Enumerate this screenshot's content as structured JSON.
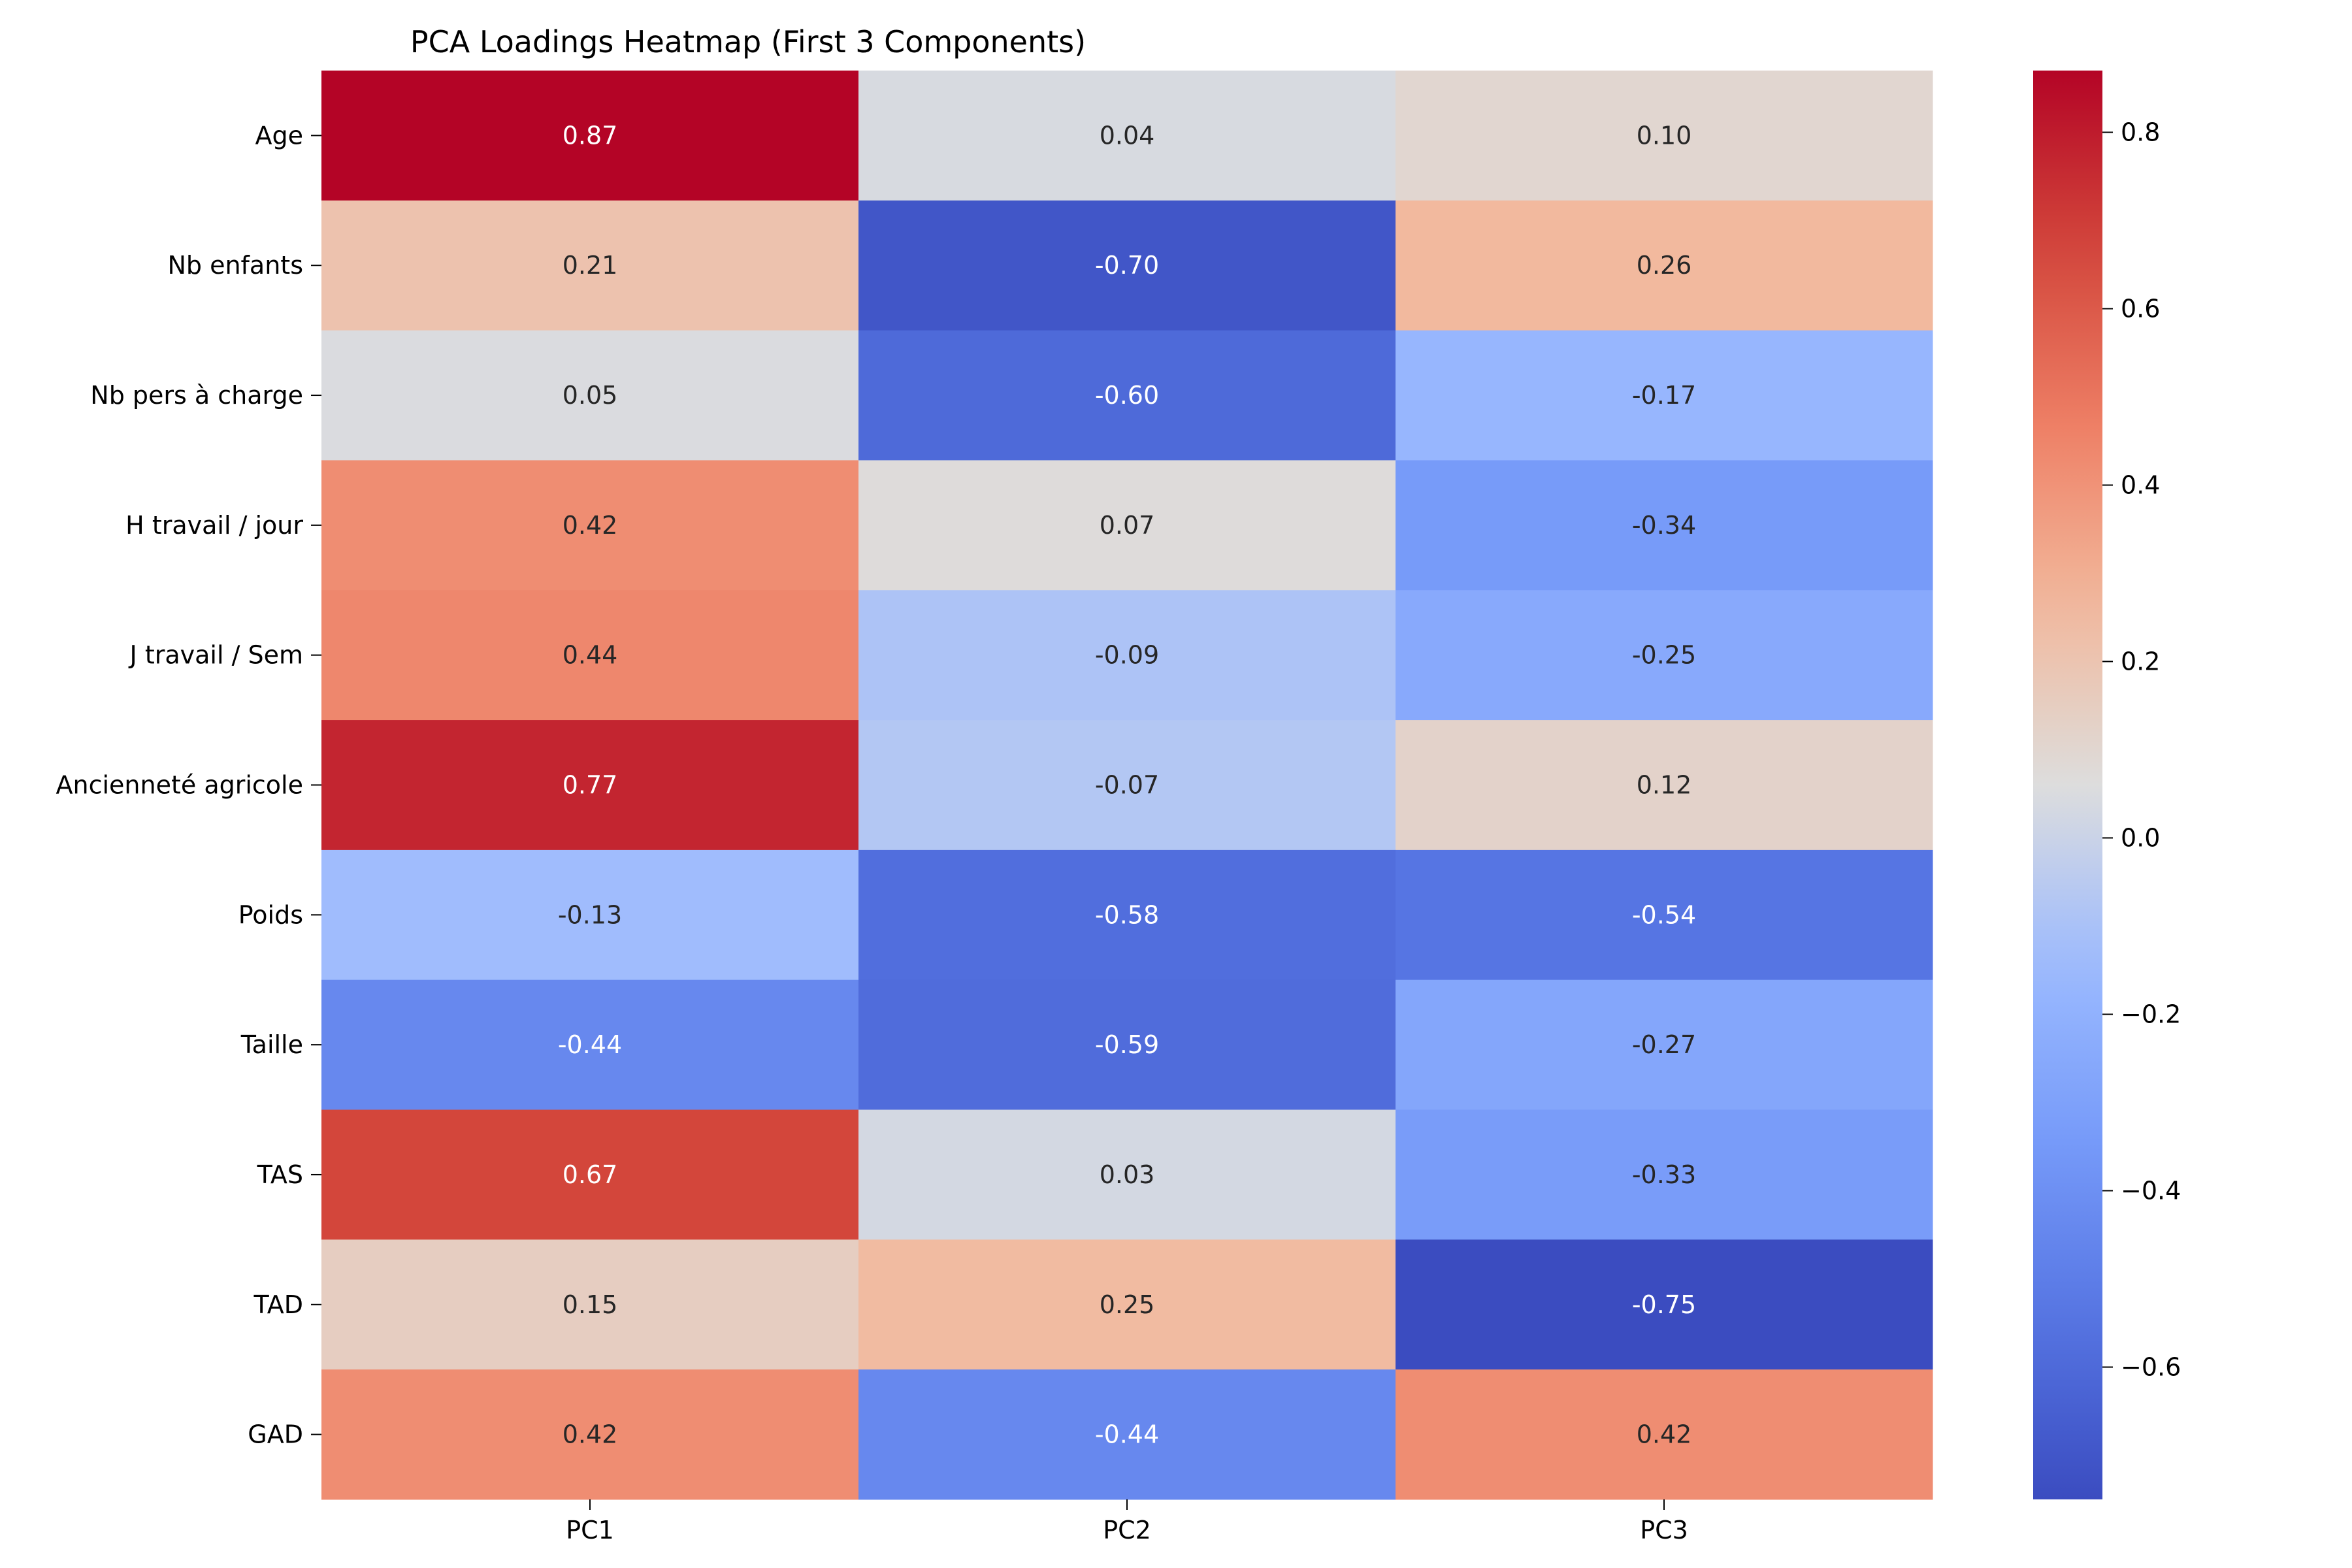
{
  "chart_data": {
    "type": "heatmap",
    "title": "PCA Loadings Heatmap (First 3 Components)",
    "xlabel": "",
    "ylabel": "",
    "columns": [
      "PC1",
      "PC2",
      "PC3"
    ],
    "rows": [
      "Age",
      "Nb enfants",
      "Nb pers à charge",
      "H travail / jour",
      "J travail / Sem",
      "Ancienneté agricole",
      "Poids",
      "Taille",
      "TAS",
      "TAD",
      "GAD"
    ],
    "values": [
      [
        0.87,
        0.04,
        0.1
      ],
      [
        0.21,
        -0.7,
        0.26
      ],
      [
        0.05,
        -0.6,
        -0.17
      ],
      [
        0.42,
        0.07,
        -0.34
      ],
      [
        0.44,
        -0.09,
        -0.25
      ],
      [
        0.77,
        -0.07,
        0.12
      ],
      [
        -0.13,
        -0.58,
        -0.54
      ],
      [
        -0.44,
        -0.59,
        -0.27
      ],
      [
        0.67,
        0.03,
        -0.33
      ],
      [
        0.15,
        0.25,
        -0.75
      ],
      [
        0.42,
        -0.44,
        0.42
      ]
    ],
    "value_format": "0.00",
    "colormap": "coolwarm",
    "color_range": [
      -0.75,
      0.87
    ],
    "colorbar_ticks": [
      0.8,
      0.6,
      0.4,
      0.2,
      0.0,
      -0.2,
      -0.4,
      -0.6
    ],
    "colorbar_tick_labels": [
      "0.8",
      "0.6",
      "0.4",
      "0.2",
      "0.0",
      "−0.2",
      "−0.4",
      "−0.6"
    ],
    "grid": false,
    "legend": "colorbar-right"
  }
}
